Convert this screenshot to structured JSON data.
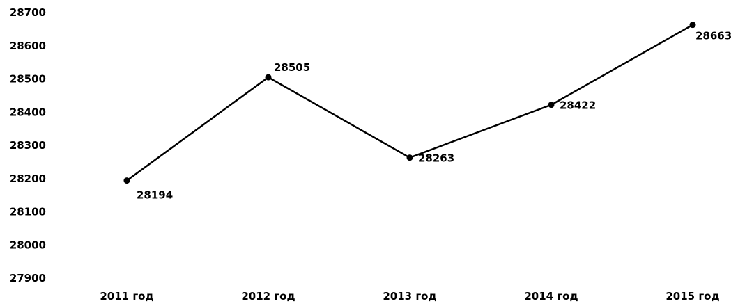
{
  "chart_data": {
    "type": "line",
    "title": "",
    "xlabel": "",
    "ylabel": "",
    "categories": [
      "2011 год",
      "2012 год",
      "2013 год",
      "2014 год",
      "2015 год"
    ],
    "series": [
      {
        "values": [
          28194,
          28505,
          28263,
          28422,
          28663
        ]
      }
    ],
    "data_labels": [
      "28194",
      "28505",
      "28263",
      "28422",
      "28663"
    ],
    "ylim": [
      27900,
      28700
    ],
    "yticks": [
      "27900",
      "28000",
      "28100",
      "28200",
      "28300",
      "28400",
      "28500",
      "28600",
      "28700"
    ],
    "grid": false,
    "legend": "none",
    "line_color": "#000000",
    "marker": "circle"
  }
}
